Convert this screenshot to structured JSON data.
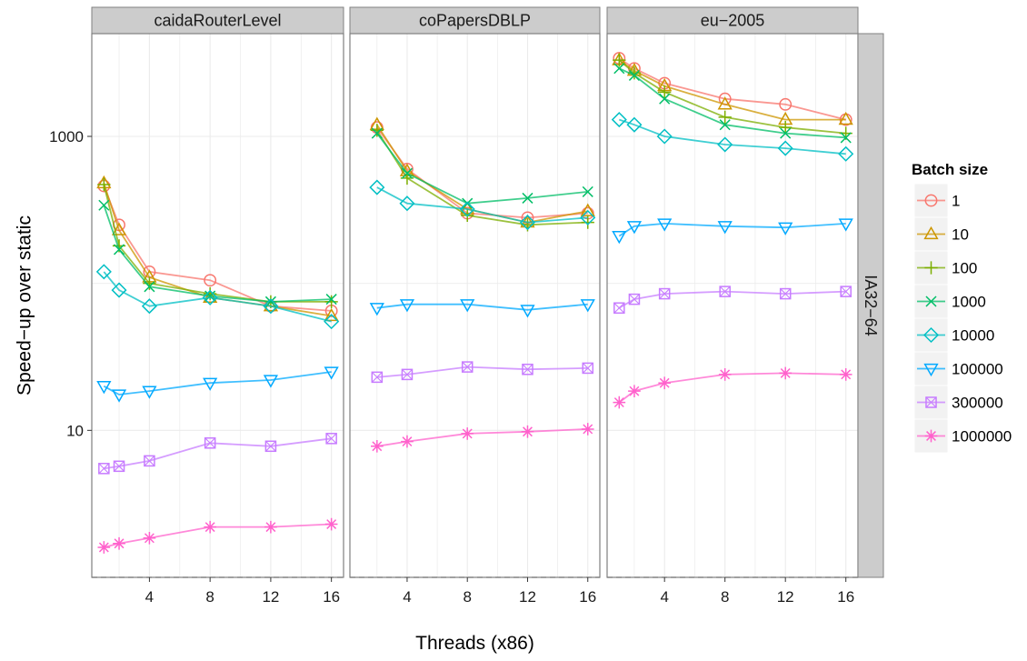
{
  "chart_data": {
    "type": "line",
    "x_label": "Threads (x86)",
    "y_label": "Speed−up over static",
    "y_scale": "log10",
    "y_range": [
      1,
      5000
    ],
    "x_range": [
      0.2,
      16.8
    ],
    "x_ticks": [
      4,
      8,
      12,
      16
    ],
    "y_ticks": [
      {
        "value": 10,
        "label": "10"
      },
      {
        "value": 1000,
        "label": "1000"
      }
    ],
    "baseline": 1,
    "grid": true,
    "row_strip": "IA32−64",
    "legend": {
      "title": "Batch size",
      "placement": "right",
      "entries": [
        {
          "label": "1",
          "color": "#F8766D",
          "shape": "circle"
        },
        {
          "label": "10",
          "color": "#CD9600",
          "shape": "triangle"
        },
        {
          "label": "100",
          "color": "#7CAE00",
          "shape": "plus"
        },
        {
          "label": "1000",
          "color": "#00BE67",
          "shape": "cross"
        },
        {
          "label": "10000",
          "color": "#00BFC4",
          "shape": "diamond"
        },
        {
          "label": "100000",
          "color": "#00A9FF",
          "shape": "triangle-down"
        },
        {
          "label": "300000",
          "color": "#C77CFF",
          "shape": "square-cross"
        },
        {
          "label": "1000000",
          "color": "#FF61CC",
          "shape": "star"
        }
      ]
    },
    "panels": [
      {
        "title": "caidaRouterLevel",
        "series": [
          {
            "name": "1",
            "x": [
              1,
              2,
              4,
              8,
              12,
              16
            ],
            "y": [
              460,
              250,
              120,
              105,
              70,
              65
            ]
          },
          {
            "name": "10",
            "x": [
              1,
              2,
              4,
              8,
              12,
              16
            ],
            "y": [
              480,
              230,
              110,
              80,
              70,
              60
            ]
          },
          {
            "name": "100",
            "x": [
              1,
              2,
              4,
              8,
              12,
              16
            ],
            "y": [
              470,
              180,
              100,
              85,
              75,
              75
            ]
          },
          {
            "name": "1000",
            "x": [
              1,
              2,
              4,
              8,
              12,
              16
            ],
            "y": [
              340,
              170,
              95,
              82,
              75,
              78
            ]
          },
          {
            "name": "10000",
            "x": [
              1,
              2,
              4,
              8,
              12,
              16
            ],
            "y": [
              120,
              90,
              70,
              80,
              70,
              55
            ]
          },
          {
            "name": "100000",
            "x": [
              1,
              2,
              4,
              8,
              12,
              16
            ],
            "y": [
              20,
              17.5,
              18.5,
              21,
              22,
              25
            ]
          },
          {
            "name": "300000",
            "x": [
              1,
              2,
              4,
              8,
              12,
              16
            ],
            "y": [
              5.5,
              5.7,
              6.2,
              8.2,
              7.8,
              8.8
            ]
          },
          {
            "name": "1000000",
            "x": [
              1,
              2,
              4,
              8,
              12,
              16
            ],
            "y": [
              1.6,
              1.7,
              1.85,
              2.2,
              2.2,
              2.3
            ]
          }
        ]
      },
      {
        "title": "coPapersDBLP",
        "series": [
          {
            "name": "1",
            "x": [
              2,
              4,
              8,
              12,
              16
            ],
            "y": [
              1150,
              600,
              300,
              280,
              300
            ]
          },
          {
            "name": "10",
            "x": [
              2,
              4,
              8,
              12,
              16
            ],
            "y": [
              1200,
              580,
              320,
              260,
              310
            ]
          },
          {
            "name": "100",
            "x": [
              2,
              4,
              8,
              12,
              16
            ],
            "y": [
              1100,
              520,
              290,
              250,
              260
            ]
          },
          {
            "name": "1000",
            "x": [
              2,
              4,
              8,
              12,
              16
            ],
            "y": [
              1050,
              560,
              350,
              380,
              420
            ]
          },
          {
            "name": "10000",
            "x": [
              2,
              4,
              8,
              12,
              16
            ],
            "y": [
              450,
              350,
              320,
              260,
              280
            ]
          },
          {
            "name": "100000",
            "x": [
              2,
              4,
              8,
              12,
              16
            ],
            "y": [
              68,
              72,
              72,
              66,
              72
            ]
          },
          {
            "name": "300000",
            "x": [
              2,
              4,
              8,
              12,
              16
            ],
            "y": [
              23,
              24,
              27,
              26,
              26.5
            ]
          },
          {
            "name": "1000000",
            "x": [
              2,
              4,
              8,
              12,
              16
            ],
            "y": [
              7.8,
              8.4,
              9.5,
              9.8,
              10.2
            ]
          }
        ]
      },
      {
        "title": "eu−2005",
        "series": [
          {
            "name": "1",
            "x": [
              1,
              2,
              4,
              8,
              12,
              16
            ],
            "y": [
              3400,
              2900,
              2300,
              1800,
              1650,
              1300
            ]
          },
          {
            "name": "10",
            "x": [
              1,
              2,
              4,
              8,
              12,
              16
            ],
            "y": [
              3300,
              2800,
              2200,
              1650,
              1300,
              1300
            ]
          },
          {
            "name": "100",
            "x": [
              1,
              2,
              4,
              8,
              12,
              16
            ],
            "y": [
              3300,
              2700,
              2000,
              1350,
              1150,
              1050
            ]
          },
          {
            "name": "1000",
            "x": [
              1,
              2,
              4,
              8,
              12,
              16
            ],
            "y": [
              2900,
              2600,
              1800,
              1200,
              1050,
              980
            ]
          },
          {
            "name": "10000",
            "x": [
              1,
              2,
              4,
              8,
              12,
              16
            ],
            "y": [
              1300,
              1200,
              1000,
              880,
              830,
              760
            ]
          },
          {
            "name": "100000",
            "x": [
              1,
              2,
              4,
              8,
              12,
              16
            ],
            "y": [
              210,
              245,
              255,
              245,
              240,
              255
            ]
          },
          {
            "name": "300000",
            "x": [
              1,
              2,
              4,
              8,
              12,
              16
            ],
            "y": [
              68,
              78,
              85,
              88,
              85,
              88
            ]
          },
          {
            "name": "1000000",
            "x": [
              1,
              2,
              4,
              8,
              12,
              16
            ],
            "y": [
              15.5,
              18.5,
              21,
              24,
              24.5,
              24
            ]
          }
        ]
      }
    ]
  }
}
